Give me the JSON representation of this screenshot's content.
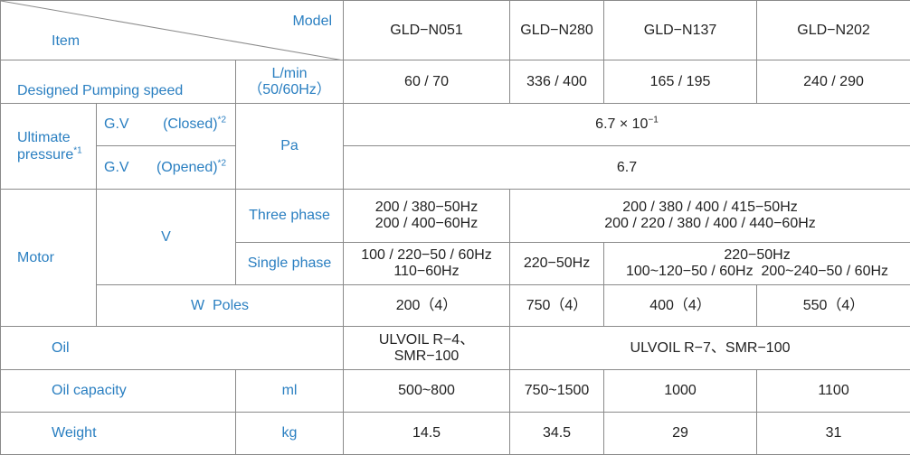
{
  "header": {
    "model_label": "Model",
    "item_label": "Item",
    "models": [
      "GLD−N051",
      "GLD−N280",
      "GLD−N137",
      "GLD−N202"
    ]
  },
  "pumping_speed": {
    "label": "Designed Pumping speed",
    "unit_line1": "L/min",
    "unit_line2": "（50/60Hz）",
    "values": [
      "60 / 70",
      "336 / 400",
      "165 / 195",
      "240 / 290"
    ]
  },
  "ultimate_pressure": {
    "label_line1": "Ultimate",
    "label_line2": "pressure",
    "label_note": "*1",
    "unit": "Pa",
    "closed": {
      "gv": "G.V",
      "state": "(Closed)",
      "note": "*2",
      "value_base": "6.7 × 10",
      "value_exp": "−1"
    },
    "opened": {
      "gv": "G.V",
      "state": "(Opened)",
      "note": "*2",
      "value": "6.7"
    }
  },
  "motor": {
    "label": "Motor",
    "unit": "V",
    "three_phase": {
      "label": "Three phase",
      "n051_line1": "200 / 380−50Hz",
      "n051_line2": "200 / 400−60Hz",
      "others_line1": "200 / 380 / 400 / 415−50Hz",
      "others_line2": "200 / 220 / 380 / 400 / 440−60Hz"
    },
    "single_phase": {
      "label": "Single phase",
      "n051_line1": "100 / 220−50 / 60Hz",
      "n051_line2": "110−60Hz",
      "n280": "220−50Hz",
      "others_line1": "220−50Hz",
      "others_line2": "100~120−50 / 60Hz  200~240−50 / 60Hz"
    },
    "poles": {
      "label": "W  Poles",
      "values": [
        "200（4）",
        "750（4）",
        "400（4）",
        "550（4）"
      ]
    }
  },
  "oil": {
    "label": "Oil",
    "n051_line1": "ULVOIL R−4、",
    "n051_line2": "SMR−100",
    "others": "ULVOIL R−7、SMR−100"
  },
  "oil_capacity": {
    "label": "Oil capacity",
    "unit": "ml",
    "values": [
      "500~800",
      "750~1500",
      "1000",
      "1100"
    ]
  },
  "weight": {
    "label": "Weight",
    "unit": "kg",
    "values": [
      "14.5",
      "34.5",
      "29",
      "31"
    ]
  },
  "colors": {
    "label_blue": "#2a7fc1",
    "text": "#222222",
    "border": "#8a8a8a"
  }
}
